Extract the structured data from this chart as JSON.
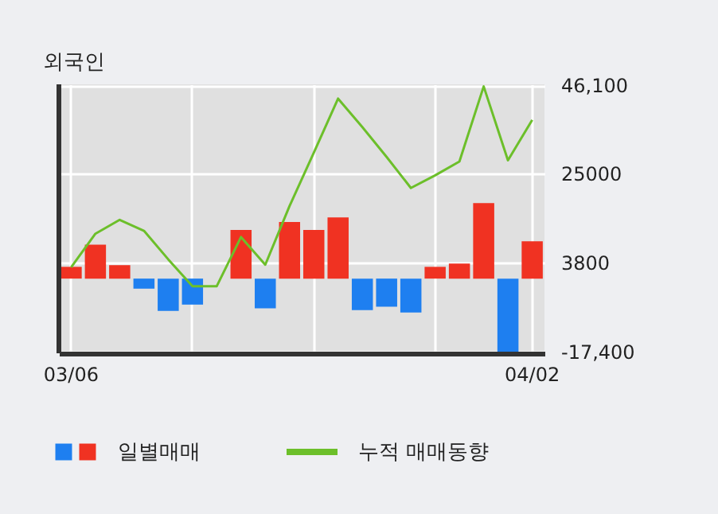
{
  "chart_data": {
    "type": "bar",
    "title": "외국인",
    "categories": [
      "03/06",
      null,
      null,
      null,
      null,
      null,
      null,
      null,
      null,
      null,
      null,
      null,
      null,
      null,
      null,
      null,
      null,
      null,
      null,
      "04/02"
    ],
    "series": [
      {
        "name": "일별매매",
        "colors": [
          "#f03222",
          "#f03222",
          "#f03222",
          "#1e7ff0",
          "#1e7ff0",
          "#1e7ff0",
          "#f03222",
          "#f03222",
          "#1e7ff0",
          "#f03222",
          "#f03222",
          "#f03222",
          "#1e7ff0",
          "#1e7ff0",
          "#1e7ff0",
          "#f03222",
          "#f03222",
          "#f03222",
          "#1e7ff0",
          "#f03222"
        ],
        "values": [
          2800,
          8100,
          3200,
          -2400,
          -7700,
          -6200,
          0,
          11600,
          -7100,
          13500,
          11600,
          14600,
          -7500,
          -6700,
          -8100,
          2800,
          3600,
          18000,
          -17400,
          8900
        ]
      },
      {
        "name": "누적 매매동향",
        "type": "line",
        "color": "#6cbf2a",
        "values": [
          2700,
          10700,
          14000,
          11400,
          4600,
          -1800,
          -1800,
          9900,
          3300,
          17300,
          30000,
          42900,
          36100,
          29000,
          21600,
          24600,
          27900,
          45800,
          28200,
          37800
        ]
      }
    ],
    "ylim": [
      -17800,
      46300
    ],
    "yticks": [
      {
        "value": 46100,
        "label": "46,100"
      },
      25000,
      3800,
      {
        "value": -17400,
        "label": "-17,400"
      }
    ],
    "grid": true,
    "legend": "bottom"
  }
}
